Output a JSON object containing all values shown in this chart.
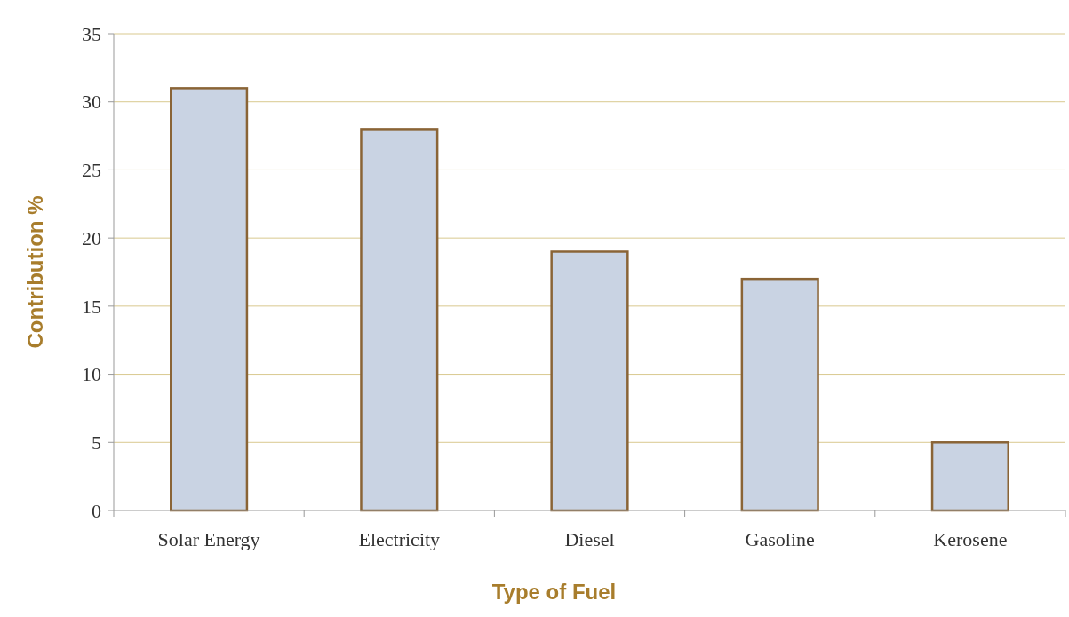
{
  "chart_data": {
    "type": "bar",
    "xlabel": "Type of Fuel",
    "ylabel": "Contribution %",
    "categories": [
      "Solar Energy",
      "Electricity",
      "Diesel",
      "Gasoline",
      "Kerosene"
    ],
    "values": [
      31,
      28,
      19,
      17,
      5
    ],
    "color": "#c9d3e3",
    "ylim": [
      0,
      35
    ],
    "yticks": [
      0,
      5,
      10,
      15,
      20,
      25,
      30,
      35
    ],
    "grid": "y"
  }
}
